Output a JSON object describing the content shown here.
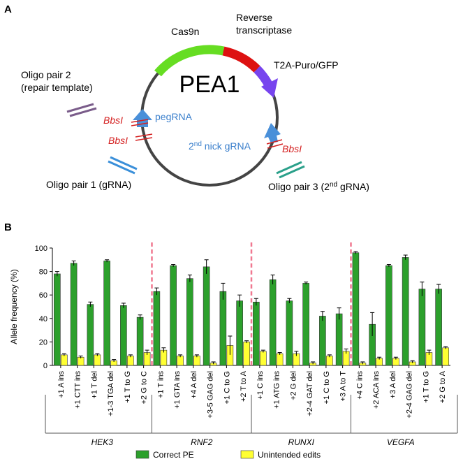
{
  "panel_a": {
    "label": "A",
    "plasmid": "PEA1",
    "cas9n": "Cas9n",
    "rt": [
      "Reverse",
      "transcriptase"
    ],
    "t2a": "T2A-Puro/GFP",
    "oligo2": [
      "Oligo pair 2",
      "(repair template)"
    ],
    "pegrna": "pegRNA",
    "bbsi": [
      "BbsI",
      "BbsI",
      "BbsI"
    ],
    "nick": [
      "2",
      "nd",
      " nick gRNA"
    ],
    "oligo1": "Oligo pair 1 (gRNA)",
    "oligo3": [
      "Oligo pair 3 (2",
      "nd",
      " gRNA)"
    ]
  },
  "panel_b": {
    "label": "B"
  },
  "chart_data": {
    "type": "bar",
    "ylabel": "Allele frequency (%)",
    "categories": [
      "+1 A ins",
      "+1 CTT ins",
      "+1 T del",
      "+1-3 TGA del",
      "+1 T to G",
      "+2 G to C",
      "+1 T ins",
      "+1 GTA ins",
      "+4 A del",
      "+3-5 GAG del",
      "+1 C to G",
      "+2 T to A",
      "+1 C ins",
      "+1 ATG ins",
      "+2 G del",
      "+2-4 GAT del",
      "+1 C to G",
      "+3 A to T",
      "+4 C ins",
      "+2 ACA ins",
      "+3 A del",
      "+2-4 GAG del",
      "+1 T to G",
      "+2 G to A"
    ],
    "groups": [
      "HEK3",
      "RNF2",
      "RUNXI",
      "VEGFA"
    ],
    "series": [
      {
        "name": "Correct PE",
        "color": "#2ca02c",
        "values": [
          78,
          87,
          52,
          89,
          51,
          41,
          63,
          85,
          74,
          84,
          63,
          55,
          54,
          73,
          55,
          70,
          42,
          44,
          96,
          35,
          85,
          92,
          65,
          65
        ],
        "errors": [
          2,
          2,
          2,
          1,
          2,
          2,
          3,
          1,
          3,
          6,
          7,
          5,
          3,
          4,
          2,
          1,
          4,
          5,
          1,
          10,
          1,
          2,
          6,
          4
        ]
      },
      {
        "name": "Unintended edits",
        "color": "#ffff33",
        "values": [
          9,
          7,
          9,
          4,
          8,
          11,
          13,
          8,
          8,
          2,
          17,
          20,
          12,
          10,
          10,
          2,
          8,
          12,
          2,
          6,
          6,
          3,
          11,
          15
        ],
        "errors": [
          1,
          1,
          1,
          1,
          1,
          2,
          2,
          1,
          1,
          1,
          8,
          1,
          1,
          1,
          2,
          1,
          1,
          2,
          1,
          1,
          1,
          1,
          2,
          1
        ]
      }
    ],
    "ylim": [
      0,
      100
    ],
    "yticks": [
      0,
      20,
      40,
      60,
      80,
      100
    ]
  }
}
